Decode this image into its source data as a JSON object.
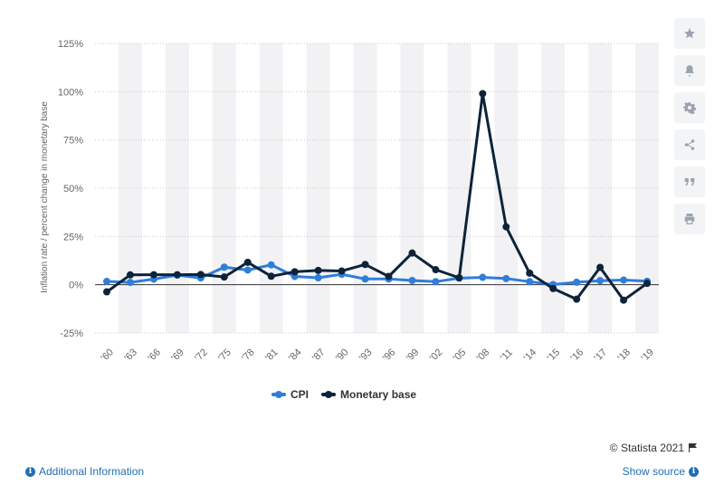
{
  "chart_data": {
    "type": "line",
    "title": "",
    "xlabel": "",
    "ylabel": "Inflation rate / percent change in monetary base",
    "categories": [
      "'60",
      "'63",
      "'66",
      "'69",
      "'72",
      "'75",
      "'78",
      "'81",
      "'84",
      "'87",
      "'90",
      "'93",
      "'96",
      "'99",
      "'02",
      "'05",
      "'08",
      "'11",
      "'14",
      "'15",
      "'16",
      "'17",
      "'18",
      "'19"
    ],
    "series": [
      {
        "name": "CPI",
        "color": "#2f7ed8",
        "values": [
          1.7,
          1.2,
          2.9,
          5.0,
          3.5,
          9.1,
          7.6,
          10.3,
          4.3,
          3.6,
          5.4,
          3.0,
          3.0,
          2.2,
          1.6,
          3.4,
          3.8,
          3.2,
          1.6,
          0.1,
          1.3,
          2.1,
          2.4,
          1.8
        ]
      },
      {
        "name": "Monetary base",
        "color": "#0d233a",
        "values": [
          -3.7,
          5.1,
          5.2,
          5.2,
          5.3,
          4.0,
          11.6,
          4.4,
          6.7,
          7.4,
          7.1,
          10.5,
          4.3,
          16.4,
          7.8,
          3.6,
          99.0,
          30.0,
          6.0,
          -2.0,
          -7.5,
          9.0,
          -8.0,
          0.7
        ]
      }
    ],
    "yticks": [
      "125%",
      "100%",
      "75%",
      "50%",
      "25%",
      "0%",
      "-25%"
    ],
    "ytick_values": [
      125,
      100,
      75,
      50,
      25,
      0,
      -25
    ],
    "ylim": [
      -25,
      125
    ],
    "grid": true,
    "legend_position": "bottom"
  },
  "toolbar": {
    "icons": [
      "star-icon",
      "bell-icon",
      "gear-icon",
      "share-icon",
      "quote-icon",
      "print-icon"
    ]
  },
  "footer": {
    "credit": "© Statista 2021",
    "additional_info": "Additional Information",
    "show_source": "Show source"
  },
  "colors": {
    "accent": "#1f6fb5",
    "band": "#f2f2f4"
  }
}
